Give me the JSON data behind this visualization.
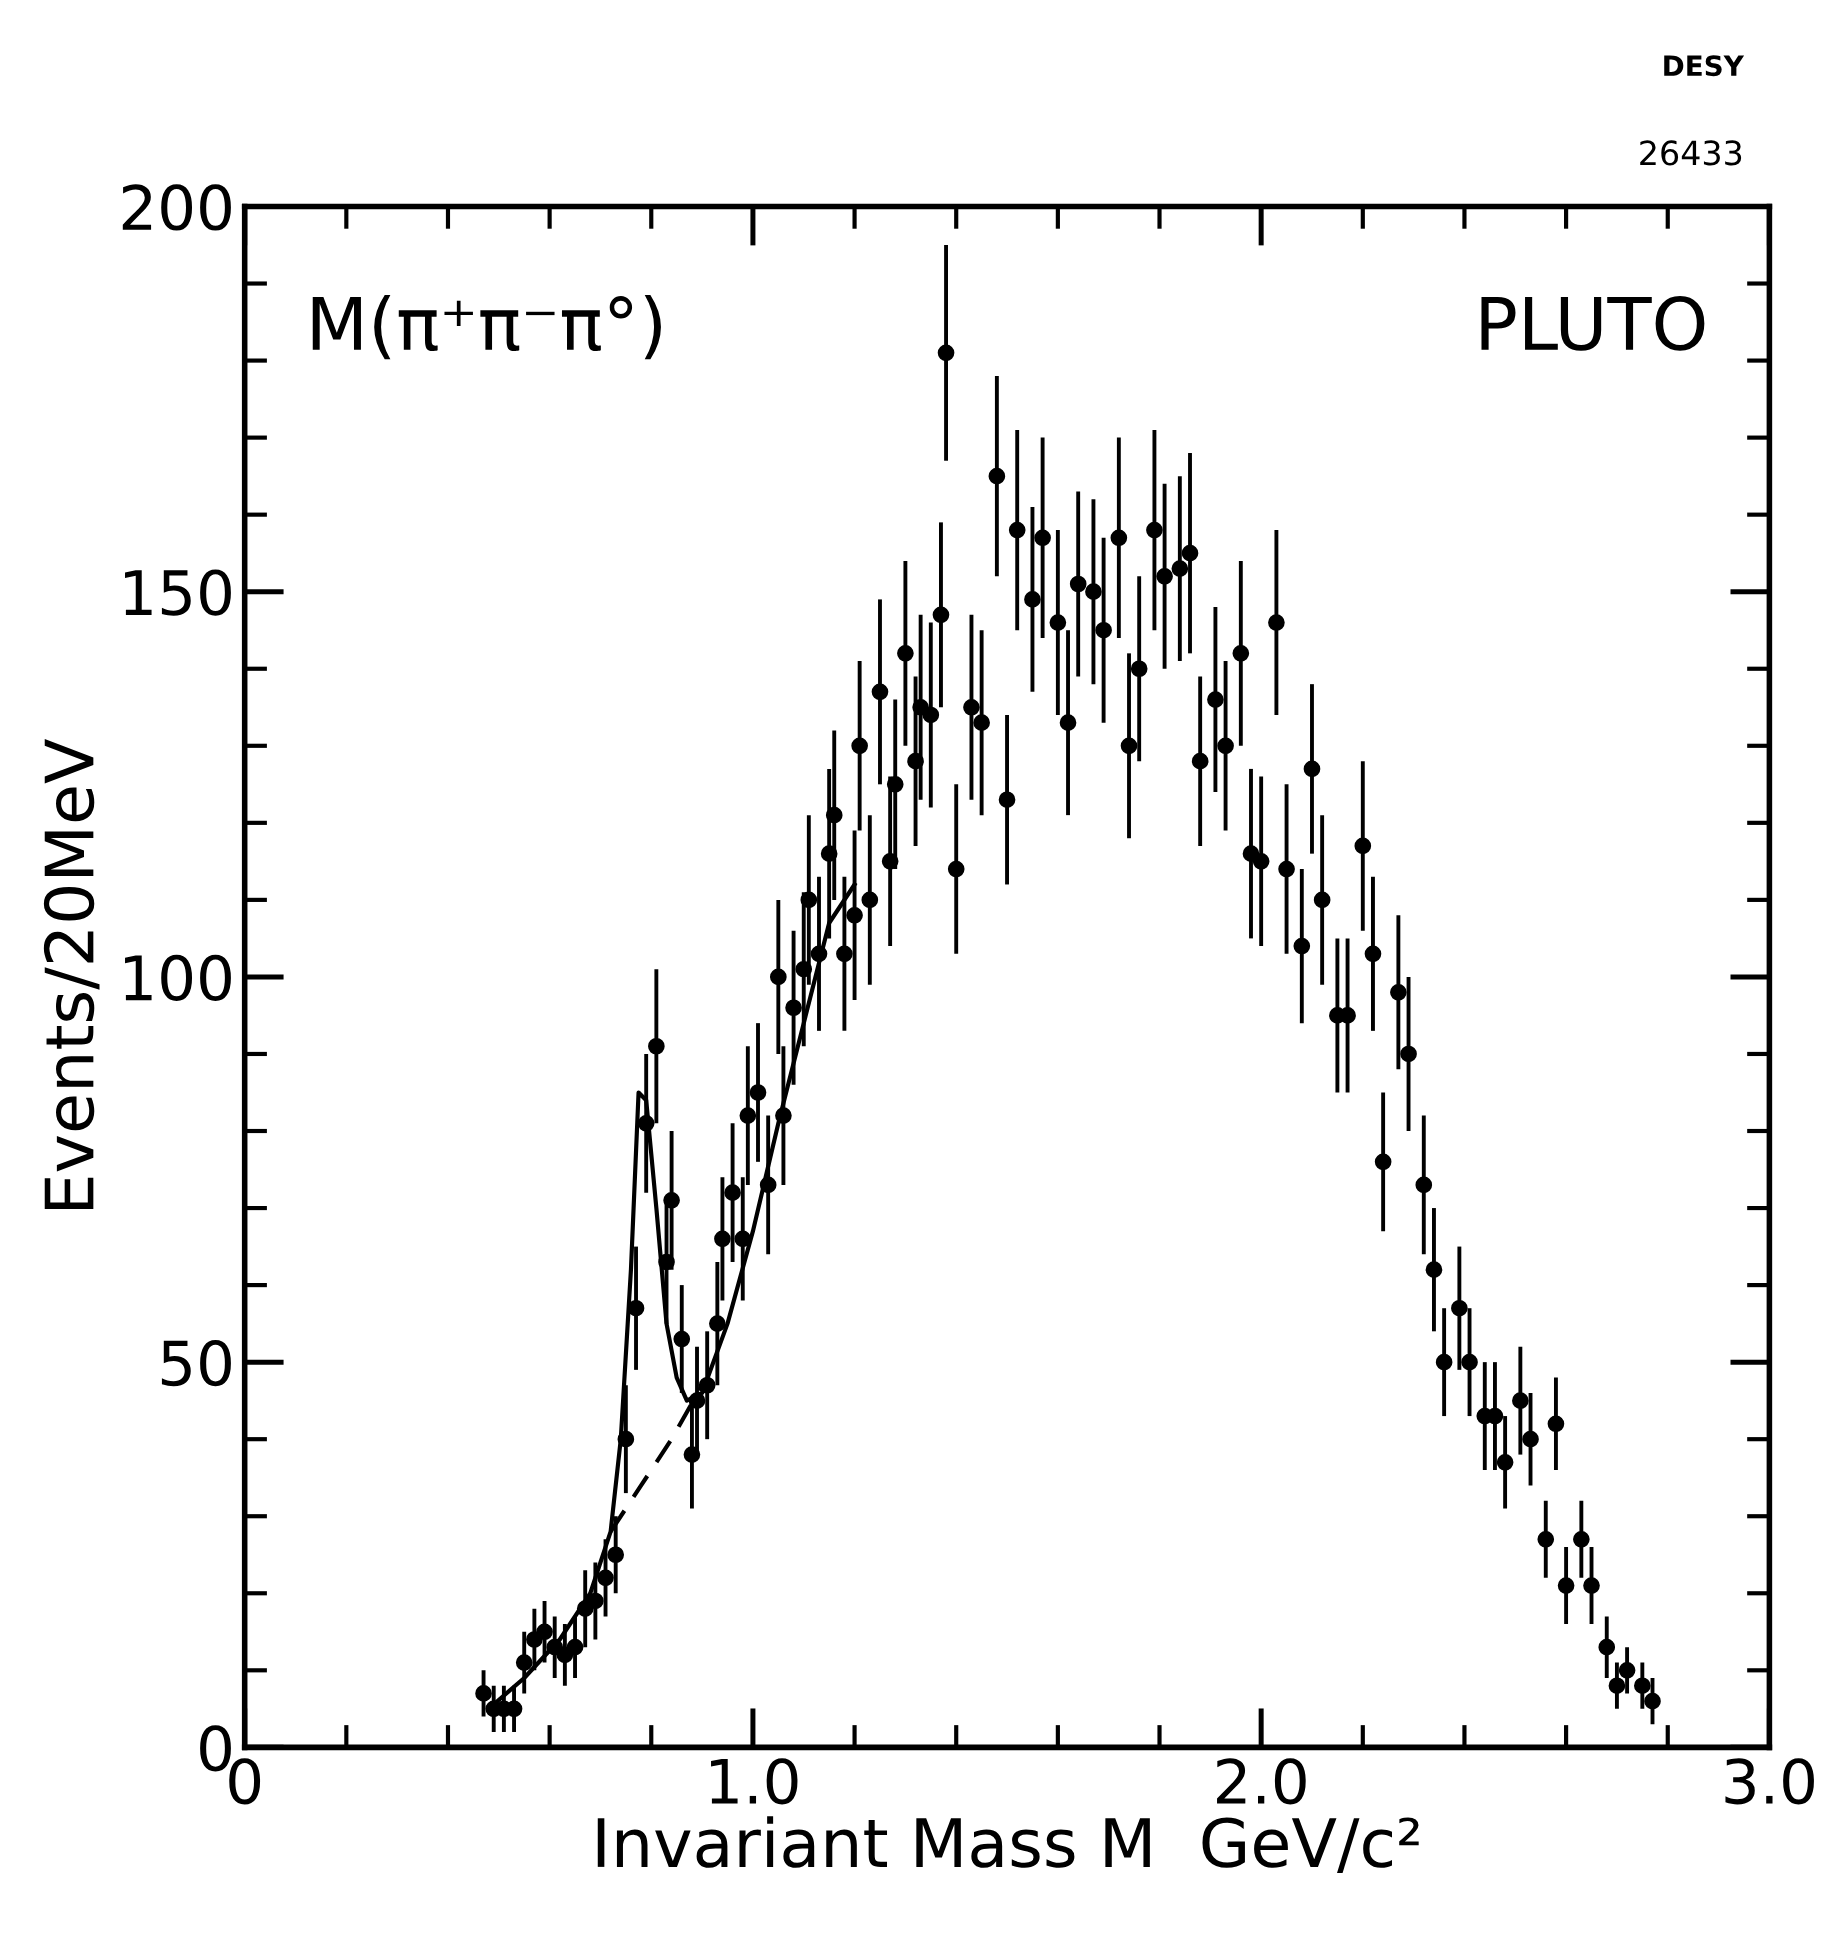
{
  "chart_data": {
    "type": "scatter",
    "xlabel": "Invariant Mass M  GeV/c²",
    "ylabel": "Events/20MeV",
    "annotations": [
      "M(π⁺π⁻π°)",
      "PLUTO",
      "DESY",
      "26433"
    ],
    "xlim": [
      0,
      3
    ],
    "ylim": [
      0,
      200
    ],
    "xticks": [
      0,
      {
        "value": 0.2,
        "label": null
      },
      {
        "value": 0.4,
        "label": null
      },
      {
        "value": 0.6,
        "label": null
      },
      {
        "value": 0.8,
        "label": null
      },
      {
        "value": 1,
        "label": "1.0"
      },
      {
        "value": 1.2,
        "label": null
      },
      {
        "value": 1.4,
        "label": null
      },
      {
        "value": 1.6,
        "label": null
      },
      {
        "value": 1.8,
        "label": null
      },
      {
        "value": 2,
        "label": "2.0"
      },
      {
        "value": 2.2,
        "label": null
      },
      {
        "value": 2.4,
        "label": null
      },
      {
        "value": 2.6,
        "label": null
      },
      {
        "value": 2.8,
        "label": null
      },
      {
        "value": 3,
        "label": "3.0"
      }
    ],
    "yticks": [
      0,
      {
        "value": 10,
        "label": null
      },
      {
        "value": 20,
        "label": null
      },
      {
        "value": 30,
        "label": null
      },
      {
        "value": 40,
        "label": null
      },
      50,
      {
        "value": 60,
        "label": null
      },
      {
        "value": 70,
        "label": null
      },
      {
        "value": 80,
        "label": null
      },
      {
        "value": 90,
        "label": null
      },
      100,
      {
        "value": 110,
        "label": null
      },
      {
        "value": 120,
        "label": null
      },
      {
        "value": 130,
        "label": null
      },
      {
        "value": 140,
        "label": null
      },
      150,
      {
        "value": 160,
        "label": null
      },
      {
        "value": 170,
        "label": null
      },
      {
        "value": 180,
        "label": null
      },
      {
        "value": 190,
        "label": null
      },
      200
    ],
    "grid": false,
    "legend": false,
    "series": [
      {
        "marker": "circle",
        "color": "#000000",
        "x": [
          0.47,
          0.49,
          0.51,
          0.53,
          0.55,
          0.57,
          0.59,
          0.61,
          0.63,
          0.65,
          0.67,
          0.69,
          0.71,
          0.73,
          0.75,
          0.77,
          0.79,
          0.81,
          0.83,
          0.84,
          0.86,
          0.88,
          0.89,
          0.91,
          0.93,
          0.94,
          0.96,
          0.98,
          0.99,
          1.01,
          1.03,
          1.05,
          1.06,
          1.08,
          1.1,
          1.11,
          1.13,
          1.15,
          1.16,
          1.18,
          1.2,
          1.21,
          1.23,
          1.25,
          1.27,
          1.28,
          1.3,
          1.32,
          1.33,
          1.35,
          1.37,
          1.38,
          1.4,
          1.43,
          1.45,
          1.48,
          1.5,
          1.52,
          1.55,
          1.57,
          1.6,
          1.62,
          1.64,
          1.67,
          1.69,
          1.72,
          1.74,
          1.76,
          1.79,
          1.81,
          1.84,
          1.86,
          1.88,
          1.91,
          1.93,
          1.96,
          1.98,
          2.0,
          2.03,
          2.05,
          2.08,
          2.1,
          2.12,
          2.15,
          2.17,
          2.2,
          2.22,
          2.24,
          2.27,
          2.29,
          2.32,
          2.34,
          2.36,
          2.39,
          2.41,
          2.44,
          2.46,
          2.48,
          2.51,
          2.53,
          2.56,
          2.58,
          2.6,
          2.63,
          2.65,
          2.68,
          2.7,
          2.72,
          2.75,
          2.77
        ],
        "values": [
          7,
          5,
          5,
          5,
          11,
          14,
          15,
          13,
          12,
          13,
          18,
          19,
          22,
          25,
          40,
          57,
          81,
          91,
          63,
          71,
          53,
          38,
          45,
          47,
          55,
          66,
          72,
          66,
          82,
          85,
          73,
          100,
          82,
          96,
          101,
          110,
          103,
          116,
          121,
          103,
          108,
          130,
          110,
          137,
          115,
          125,
          142,
          128,
          135,
          134,
          147,
          181,
          114,
          135,
          133,
          165,
          123,
          158,
          149,
          157,
          146,
          133,
          151,
          150,
          145,
          157,
          130,
          140,
          158,
          152,
          153,
          155,
          128,
          136,
          130,
          142,
          116,
          115,
          146,
          114,
          104,
          127,
          110,
          95,
          95,
          117,
          103,
          76,
          98,
          90,
          73,
          62,
          50,
          57,
          50,
          43,
          43,
          37,
          45,
          40,
          27,
          42,
          21,
          27,
          21,
          13,
          8,
          10,
          8,
          6
        ],
        "errors": [
          3,
          3,
          3,
          3,
          4,
          4,
          4,
          4,
          4,
          4,
          5,
          5,
          5,
          5,
          7,
          8,
          9,
          10,
          8,
          9,
          7,
          7,
          7,
          7,
          8,
          8,
          9,
          8,
          9,
          9,
          9,
          10,
          9,
          10,
          10,
          11,
          10,
          11,
          11,
          10,
          11,
          11,
          11,
          12,
          11,
          11,
          12,
          11,
          12,
          12,
          12,
          14,
          11,
          12,
          12,
          13,
          11,
          13,
          12,
          13,
          12,
          12,
          12,
          12,
          12,
          13,
          12,
          12,
          13,
          12,
          12,
          13,
          11,
          12,
          11,
          12,
          11,
          11,
          12,
          11,
          10,
          11,
          11,
          10,
          10,
          11,
          10,
          9,
          10,
          10,
          9,
          8,
          7,
          8,
          7,
          7,
          7,
          6,
          7,
          6,
          5,
          6,
          5,
          5,
          5,
          4,
          3,
          3,
          3,
          3
        ]
      },
      {
        "type": "line",
        "color": "#000000",
        "line_style": "solid",
        "x": [
          0.48,
          0.55,
          0.62,
          0.68,
          0.72,
          0.74,
          0.76,
          0.775,
          0.79,
          0.81,
          0.83,
          0.85,
          0.87,
          0.9,
          0.95,
          1.0,
          1.05,
          1.1,
          1.15,
          1.2
        ],
        "values": [
          5,
          9,
          14,
          20,
          28,
          40,
          62,
          85,
          84,
          70,
          55,
          48,
          45,
          46,
          55,
          67,
          81,
          94,
          107,
          112
        ]
      },
      {
        "type": "line",
        "color": "#000000",
        "line_style": "dashed",
        "x": [
          0.72,
          0.78,
          0.84,
          0.9
        ],
        "values": [
          28,
          34,
          40,
          47
        ]
      }
    ]
  }
}
